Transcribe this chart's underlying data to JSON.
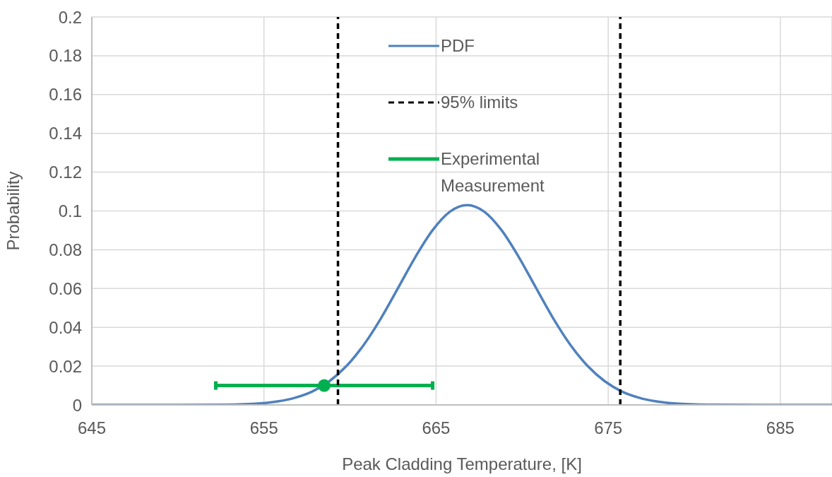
{
  "chart_data": {
    "type": "line",
    "xlabel": "Peak Cladding Temperature, [K]",
    "ylabel": "Probability",
    "xlim": [
      645,
      688
    ],
    "xticks": [
      645,
      655,
      665,
      675,
      685
    ],
    "ylim": [
      0,
      0.2
    ],
    "yticks": [
      0,
      0.02,
      0.04,
      0.06,
      0.08,
      0.1,
      0.12,
      0.14,
      0.16,
      0.18,
      0.2
    ],
    "grid": true,
    "legend": "top",
    "series": [
      {
        "name": "PDF",
        "color": "#4f81bd",
        "line_style": "solid",
        "x": [
          645,
          648.8,
          652.8,
          654.8,
          655.8,
          656.8,
          657.8,
          658.8,
          659.8,
          660.8,
          661.8,
          662.8,
          663.8,
          664.8,
          665.8,
          666.8,
          667.8,
          668.8,
          669.8,
          670.8,
          671.8,
          672.8,
          673.8,
          674.8,
          675.8,
          676.8,
          677.8,
          678.8,
          680.8,
          684.8,
          688
        ],
        "values": [
          0,
          0,
          0.0001,
          0.0008,
          0.0018,
          0.0037,
          0.0069,
          0.0122,
          0.0201,
          0.031,
          0.0447,
          0.0604,
          0.0763,
          0.0901,
          0.0996,
          0.103,
          0.0996,
          0.0901,
          0.0763,
          0.0604,
          0.0447,
          0.031,
          0.0201,
          0.0122,
          0.0069,
          0.0037,
          0.0018,
          0.0008,
          0.0001,
          0,
          0
        ]
      },
      {
        "name": "95% limits",
        "color": "#000000",
        "line_style": "dashed",
        "x": [
          659.3,
          659.3,
          null,
          675.7,
          675.7
        ],
        "values": [
          0,
          0.2,
          null,
          0,
          0.2
        ]
      },
      {
        "name": "Experimental Measurement",
        "color": "#00b050",
        "type": "scatter",
        "marker": "circle",
        "x": [
          658.5
        ],
        "values": [
          0.01
        ],
        "xerrors": [
          6.3
        ]
      }
    ]
  }
}
